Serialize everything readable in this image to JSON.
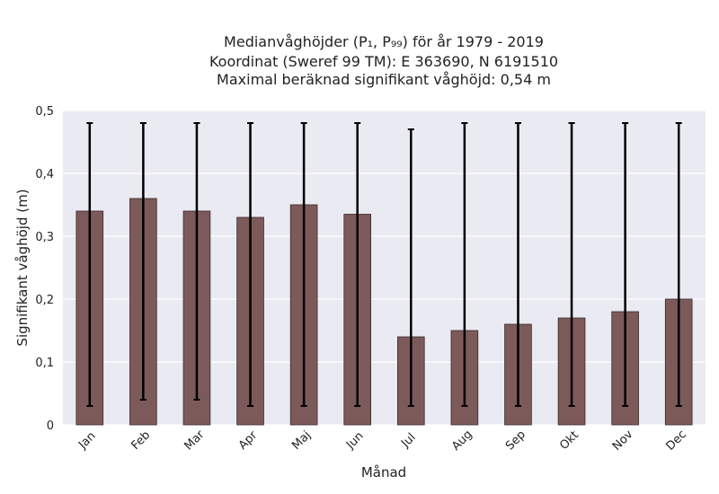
{
  "chart_data": {
    "type": "bar",
    "title_lines": [
      "Medianvåghöjder (P₁, P₉₉) för år 1979 - 2019",
      "Koordinat (Sweref 99 TM): E 363690, N 6191510",
      "Maximal beräknad signifikant våghöjd: 0,54 m"
    ],
    "xlabel": "Månad",
    "ylabel": "Signifikant våghöjd (m)",
    "categories": [
      "Jan",
      "Feb",
      "Mar",
      "Apr",
      "Maj",
      "Jun",
      "Jul",
      "Aug",
      "Sep",
      "Okt",
      "Nov",
      "Dec"
    ],
    "values": [
      0.34,
      0.36,
      0.34,
      0.33,
      0.35,
      0.335,
      0.14,
      0.15,
      0.16,
      0.17,
      0.18,
      0.2
    ],
    "error_low": [
      0.03,
      0.04,
      0.04,
      0.03,
      0.03,
      0.03,
      0.03,
      0.03,
      0.03,
      0.03,
      0.03,
      0.03
    ],
    "error_high": [
      0.48,
      0.48,
      0.48,
      0.48,
      0.48,
      0.48,
      0.47,
      0.48,
      0.48,
      0.48,
      0.48,
      0.48
    ],
    "ylim": [
      0,
      0.5
    ],
    "yticks": [
      0,
      0.1,
      0.2,
      0.3,
      0.4,
      0.5
    ],
    "ytick_labels": [
      "0",
      "0,1",
      "0,2",
      "0,3",
      "0,4",
      "0,5"
    ],
    "grid": true,
    "colors": {
      "bar": "#7d5a5a",
      "bar_edge": "#3a2a2a",
      "error_bar": "#000000",
      "background": "#eaeaf2",
      "grid": "#ffffff"
    }
  }
}
